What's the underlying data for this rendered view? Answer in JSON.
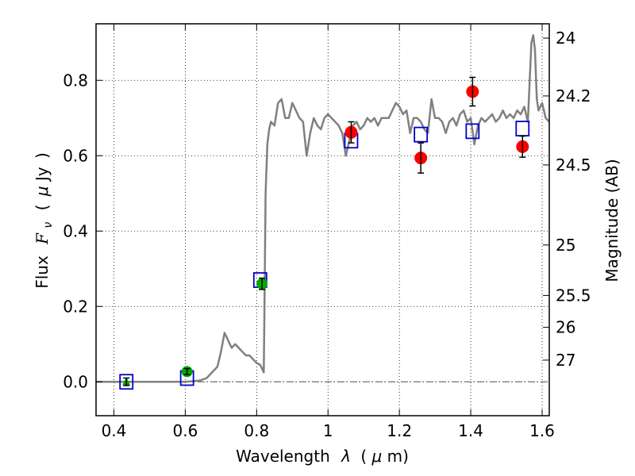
{
  "chart_data": {
    "type": "scatter",
    "xlabel_parts": [
      "Wavelength",
      "λ",
      "(",
      "μ",
      "m)"
    ],
    "ylabel_parts": [
      "Flux",
      "F",
      "ν",
      "(",
      "μ",
      "Jy",
      ")"
    ],
    "y2label": "Magnitude (AB)",
    "xlim": [
      0.35,
      1.62
    ],
    "ylim": [
      -0.09,
      0.95
    ],
    "grid": true,
    "x_ticks": [
      {
        "value": 0.4,
        "label": "0.4"
      },
      {
        "value": 0.6,
        "label": "0.6"
      },
      {
        "value": 0.8,
        "label": "0.8"
      },
      {
        "value": 1.0,
        "label": "1"
      },
      {
        "value": 1.2,
        "label": "1.2"
      },
      {
        "value": 1.4,
        "label": "1.4"
      },
      {
        "value": 1.6,
        "label": "1.6"
      }
    ],
    "y_ticks": [
      {
        "value": 0.0,
        "label": "0.0"
      },
      {
        "value": 0.2,
        "label": "0.2"
      },
      {
        "value": 0.4,
        "label": "0.4"
      },
      {
        "value": 0.6,
        "label": "0.6"
      },
      {
        "value": 0.8,
        "label": "0.8"
      }
    ],
    "magnitude_ticks": [
      {
        "mag": 24.0,
        "label": "24"
      },
      {
        "mag": 24.2,
        "label": "24.2"
      },
      {
        "mag": 24.5,
        "label": "24.5"
      },
      {
        "mag": 25.0,
        "label": "25"
      },
      {
        "mag": 25.5,
        "label": "25.5"
      },
      {
        "mag": 26.0,
        "label": "26"
      },
      {
        "mag": 27.0,
        "label": "27"
      }
    ],
    "model_spectrum": {
      "name": "model SED",
      "color": "#808080",
      "x": [
        0.35,
        0.5,
        0.6,
        0.64,
        0.66,
        0.67,
        0.68,
        0.69,
        0.7,
        0.71,
        0.72,
        0.73,
        0.74,
        0.75,
        0.76,
        0.77,
        0.78,
        0.79,
        0.8,
        0.81,
        0.815,
        0.82,
        0.822,
        0.825,
        0.83,
        0.835,
        0.84,
        0.85,
        0.86,
        0.87,
        0.88,
        0.89,
        0.9,
        0.91,
        0.92,
        0.93,
        0.94,
        0.95,
        0.96,
        0.97,
        0.98,
        0.99,
        1.0,
        1.01,
        1.02,
        1.03,
        1.04,
        1.05,
        1.06,
        1.07,
        1.08,
        1.09,
        1.1,
        1.11,
        1.12,
        1.13,
        1.14,
        1.15,
        1.16,
        1.17,
        1.18,
        1.19,
        1.2,
        1.21,
        1.22,
        1.23,
        1.24,
        1.25,
        1.26,
        1.27,
        1.28,
        1.29,
        1.3,
        1.31,
        1.32,
        1.33,
        1.34,
        1.35,
        1.36,
        1.37,
        1.38,
        1.39,
        1.4,
        1.41,
        1.42,
        1.43,
        1.44,
        1.45,
        1.46,
        1.47,
        1.48,
        1.49,
        1.5,
        1.51,
        1.52,
        1.53,
        1.54,
        1.55,
        1.56,
        1.57,
        1.575,
        1.58,
        1.585,
        1.59,
        1.6,
        1.61,
        1.62
      ],
      "y": [
        0.0,
        0.0,
        0.0,
        0.003,
        0.01,
        0.02,
        0.03,
        0.04,
        0.08,
        0.13,
        0.11,
        0.09,
        0.1,
        0.09,
        0.08,
        0.07,
        0.07,
        0.06,
        0.05,
        0.045,
        0.035,
        0.025,
        0.2,
        0.5,
        0.63,
        0.67,
        0.69,
        0.68,
        0.74,
        0.75,
        0.7,
        0.7,
        0.74,
        0.72,
        0.7,
        0.69,
        0.6,
        0.66,
        0.7,
        0.68,
        0.67,
        0.7,
        0.71,
        0.7,
        0.69,
        0.68,
        0.66,
        0.6,
        0.64,
        0.68,
        0.69,
        0.67,
        0.68,
        0.7,
        0.69,
        0.7,
        0.68,
        0.7,
        0.7,
        0.7,
        0.72,
        0.74,
        0.73,
        0.71,
        0.72,
        0.66,
        0.7,
        0.7,
        0.69,
        0.67,
        0.66,
        0.75,
        0.7,
        0.7,
        0.69,
        0.66,
        0.69,
        0.7,
        0.68,
        0.71,
        0.72,
        0.69,
        0.7,
        0.63,
        0.68,
        0.7,
        0.69,
        0.7,
        0.71,
        0.69,
        0.7,
        0.72,
        0.7,
        0.71,
        0.7,
        0.72,
        0.71,
        0.73,
        0.69,
        0.9,
        0.92,
        0.88,
        0.75,
        0.72,
        0.74,
        0.7,
        0.69
      ]
    },
    "series": [
      {
        "name": "observed (red circles)",
        "marker": "circle",
        "color": "#ff0000",
        "points": [
          {
            "x": 1.065,
            "y": 0.662,
            "err": 0.028
          },
          {
            "x": 1.26,
            "y": 0.594,
            "err": 0.04
          },
          {
            "x": 1.405,
            "y": 0.77,
            "err": 0.038
          },
          {
            "x": 1.545,
            "y": 0.624,
            "err": 0.028
          }
        ]
      },
      {
        "name": "observed (green)",
        "marker": "circle",
        "color": "#00aa00",
        "points": [
          {
            "x": 0.435,
            "y": 0.0,
            "err": 0.01,
            "marker": "triangle"
          },
          {
            "x": 0.605,
            "y": 0.027,
            "err": 0.008
          },
          {
            "x": 0.815,
            "y": 0.26,
            "err": 0.015
          }
        ]
      },
      {
        "name": "model photometry (blue squares)",
        "marker": "square",
        "color": "#0000cc",
        "points": [
          {
            "x": 0.435,
            "y": 0.0
          },
          {
            "x": 0.605,
            "y": 0.01
          },
          {
            "x": 0.81,
            "y": 0.27
          },
          {
            "x": 1.065,
            "y": 0.64
          },
          {
            "x": 1.26,
            "y": 0.656
          },
          {
            "x": 1.405,
            "y": 0.665
          },
          {
            "x": 1.545,
            "y": 0.672
          }
        ]
      }
    ],
    "zero_line": {
      "y": 0.0,
      "style": "dash-dot",
      "color": "#555555"
    }
  }
}
